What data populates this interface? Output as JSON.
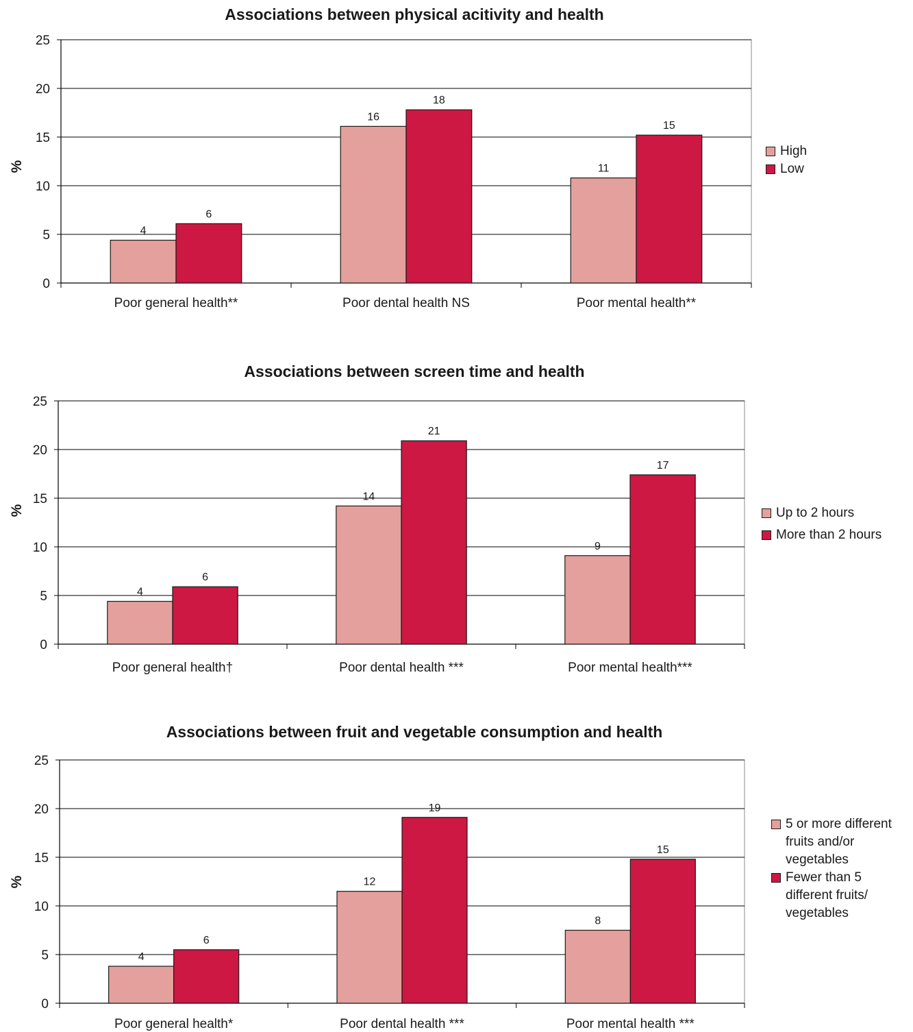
{
  "colors": {
    "series1": "#e4a09c",
    "series2": "#cc1843",
    "grid": "#000000"
  },
  "chart_data": [
    {
      "type": "bar",
      "title": "Associations between physical acitivity and health",
      "ylabel": "%",
      "ylim": [
        0,
        25
      ],
      "yticks": [
        0,
        5,
        10,
        15,
        20,
        25
      ],
      "categories": [
        "Poor general health**",
        "Poor dental health NS",
        "Poor mental health**"
      ],
      "series": [
        {
          "name": "High",
          "values": [
            4.4,
            16.1,
            10.8
          ],
          "labels": [
            "4",
            "16",
            "11"
          ]
        },
        {
          "name": "Low",
          "values": [
            6.1,
            17.8,
            15.2
          ],
          "labels": [
            "6",
            "18",
            "15"
          ]
        }
      ],
      "legend_position": "right",
      "grid": true
    },
    {
      "type": "bar",
      "title": "Associations between screen time and health",
      "ylabel": "%",
      "ylim": [
        0,
        25
      ],
      "yticks": [
        0,
        5,
        10,
        15,
        20,
        25
      ],
      "categories": [
        "Poor general health†",
        "Poor dental health ***",
        "Poor mental health***"
      ],
      "series": [
        {
          "name": "Up to 2 hours",
          "values": [
            4.4,
            14.2,
            9.1
          ],
          "labels": [
            "4",
            "14",
            "9"
          ]
        },
        {
          "name": "More than 2 hours",
          "values": [
            5.9,
            20.9,
            17.4
          ],
          "labels": [
            "6",
            "21",
            "17"
          ]
        }
      ],
      "legend_position": "right",
      "grid": true
    },
    {
      "type": "bar",
      "title": "Associations between fruit and vegetable consumption and health",
      "ylabel": "%",
      "ylim": [
        0,
        25
      ],
      "yticks": [
        0,
        5,
        10,
        15,
        20,
        25
      ],
      "categories": [
        "Poor general health*",
        "Poor dental health ***",
        "Poor mental health ***"
      ],
      "series": [
        {
          "name": "5 or more different fruits and/or vegetables",
          "values": [
            3.8,
            11.5,
            7.5
          ],
          "labels": [
            "4",
            "12",
            "8"
          ]
        },
        {
          "name": "Fewer than 5 different fruits/ vegetables",
          "values": [
            5.5,
            19.1,
            14.8
          ],
          "labels": [
            "6",
            "19",
            "15"
          ]
        }
      ],
      "legend_position": "right",
      "grid": true
    }
  ]
}
